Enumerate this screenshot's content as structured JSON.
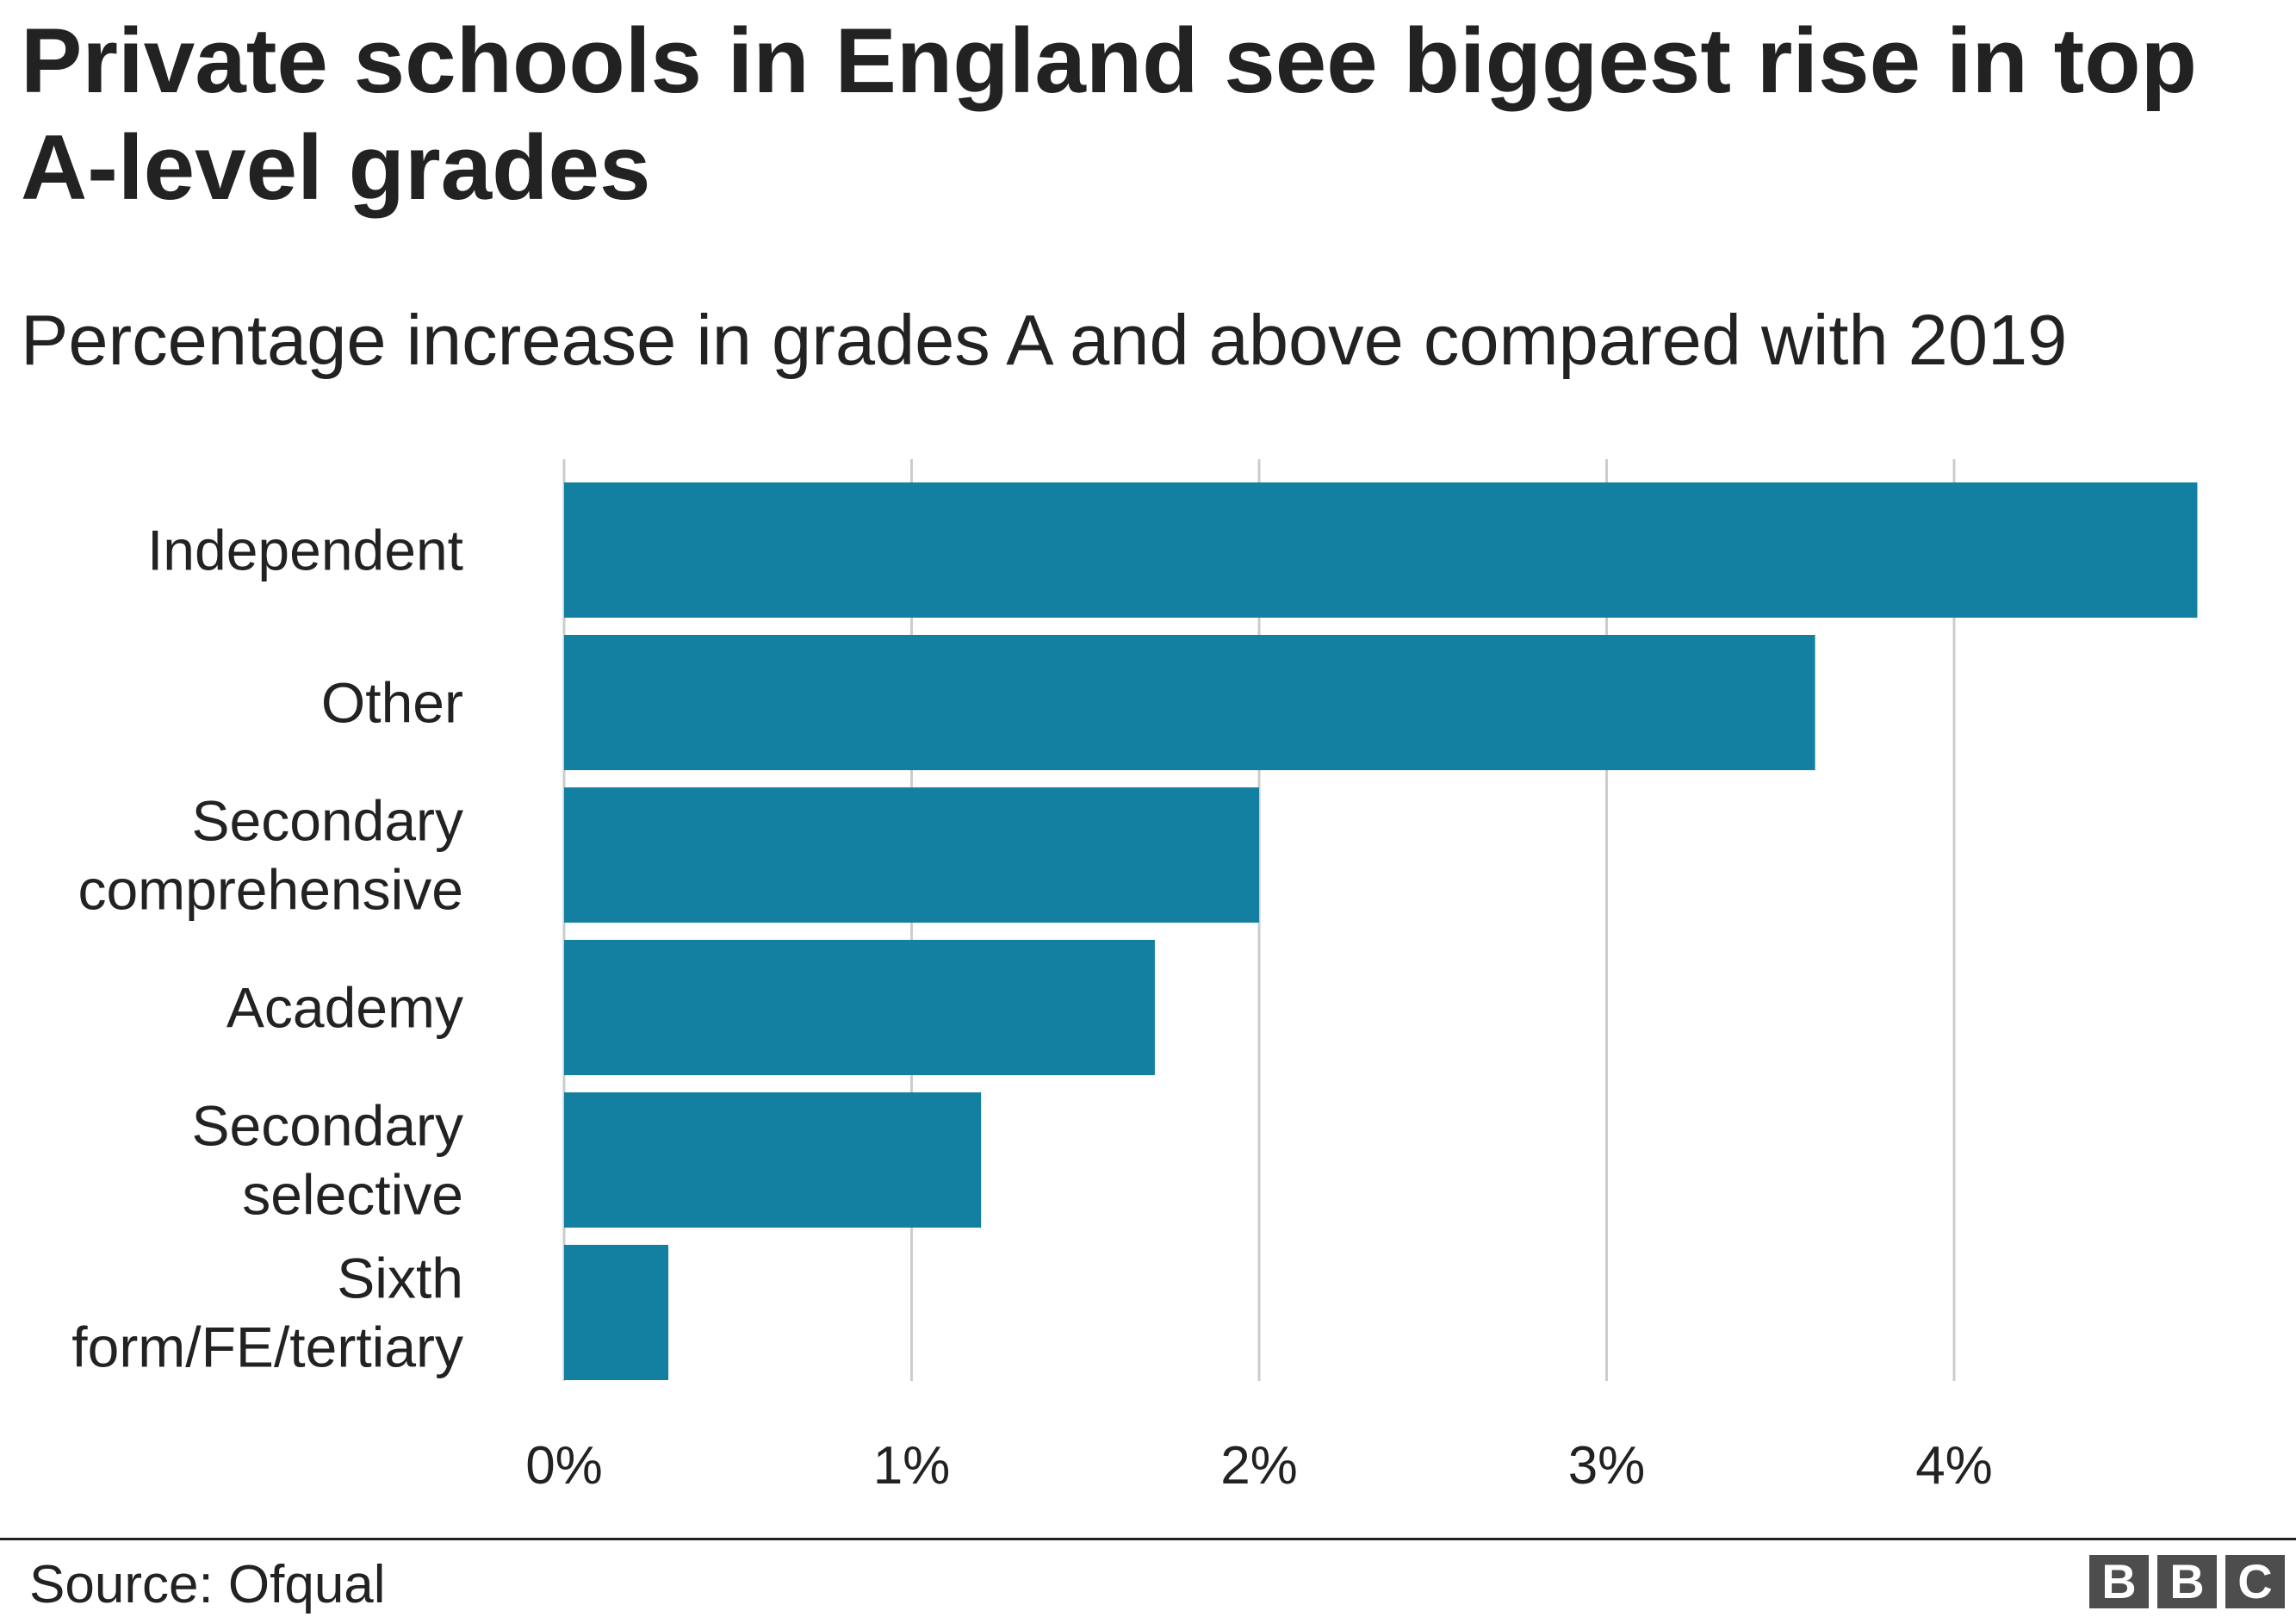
{
  "title": "Private schools in England see biggest rise in top A-level grades",
  "subtitle": "Percentage increase in grades A and above compared with 2019",
  "source": "Source: Ofqual",
  "logo_letters": [
    "B",
    "B",
    "C"
  ],
  "colors": {
    "bar": "#1480a1",
    "grid": "#cccccc",
    "text": "#222222"
  },
  "chart_data": {
    "type": "bar",
    "orientation": "horizontal",
    "title": "Private schools in England see biggest rise in top A-level grades",
    "subtitle": "Percentage increase in grades A and above compared with 2019",
    "categories": [
      [
        "Independent"
      ],
      [
        "Other"
      ],
      [
        "Secondary",
        "comprehensive"
      ],
      [
        "Academy"
      ],
      [
        "Secondary",
        "selective"
      ],
      [
        "Sixth",
        "form/FE/tertiary"
      ]
    ],
    "values": [
      4.7,
      3.6,
      2.0,
      1.7,
      1.2,
      0.3
    ],
    "unit": "%",
    "xlim": [
      0,
      4.7
    ],
    "xticks": [
      0,
      1,
      2,
      3,
      4
    ],
    "xtick_labels": [
      "0%",
      "1%",
      "2%",
      "3%",
      "4%"
    ],
    "grid": true,
    "legend": "none"
  }
}
